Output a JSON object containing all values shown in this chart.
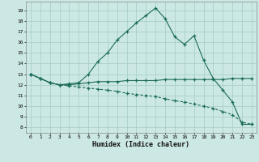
{
  "xlabel": "Humidex (Indice chaleur)",
  "bg_color": "#cce8e4",
  "grid_color": "#aacfcb",
  "line_color": "#1a6b5a",
  "xlim": [
    -0.5,
    23.5
  ],
  "ylim": [
    7.5,
    19.8
  ],
  "yticks": [
    8,
    9,
    10,
    11,
    12,
    13,
    14,
    15,
    16,
    17,
    18,
    19
  ],
  "xticks": [
    0,
    1,
    2,
    3,
    4,
    5,
    6,
    7,
    8,
    9,
    10,
    11,
    12,
    13,
    14,
    15,
    16,
    17,
    18,
    19,
    20,
    21,
    22,
    23
  ],
  "line1_x": [
    0,
    1,
    2,
    3,
    4,
    5,
    6,
    7,
    8,
    9,
    10,
    11,
    12,
    13,
    14,
    15,
    16,
    17,
    18,
    19,
    20,
    21,
    22,
    23
  ],
  "line1_y": [
    13.0,
    12.6,
    12.2,
    12.0,
    12.1,
    12.2,
    13.0,
    14.2,
    15.0,
    16.2,
    17.0,
    17.8,
    18.5,
    19.2,
    18.2,
    16.5,
    15.8,
    16.6,
    14.3,
    12.6,
    11.5,
    10.4,
    8.3,
    8.3
  ],
  "line2_x": [
    0,
    1,
    2,
    3,
    4,
    5,
    6,
    7,
    8,
    9,
    10,
    11,
    12,
    13,
    14,
    15,
    16,
    17,
    18,
    19,
    20,
    21,
    22,
    23
  ],
  "line2_y": [
    13.0,
    12.6,
    12.2,
    12.0,
    12.0,
    12.1,
    12.2,
    12.3,
    12.3,
    12.3,
    12.4,
    12.4,
    12.4,
    12.4,
    12.5,
    12.5,
    12.5,
    12.5,
    12.5,
    12.5,
    12.5,
    12.6,
    12.6,
    12.6
  ],
  "line3_x": [
    0,
    1,
    2,
    3,
    4,
    5,
    6,
    7,
    8,
    9,
    10,
    11,
    12,
    13,
    14,
    15,
    16,
    17,
    18,
    19,
    20,
    21,
    22,
    23
  ],
  "line3_y": [
    13.0,
    12.6,
    12.2,
    12.0,
    11.9,
    11.8,
    11.7,
    11.6,
    11.5,
    11.4,
    11.2,
    11.1,
    11.0,
    10.9,
    10.7,
    10.5,
    10.4,
    10.2,
    10.0,
    9.8,
    9.5,
    9.2,
    8.5,
    8.3
  ]
}
